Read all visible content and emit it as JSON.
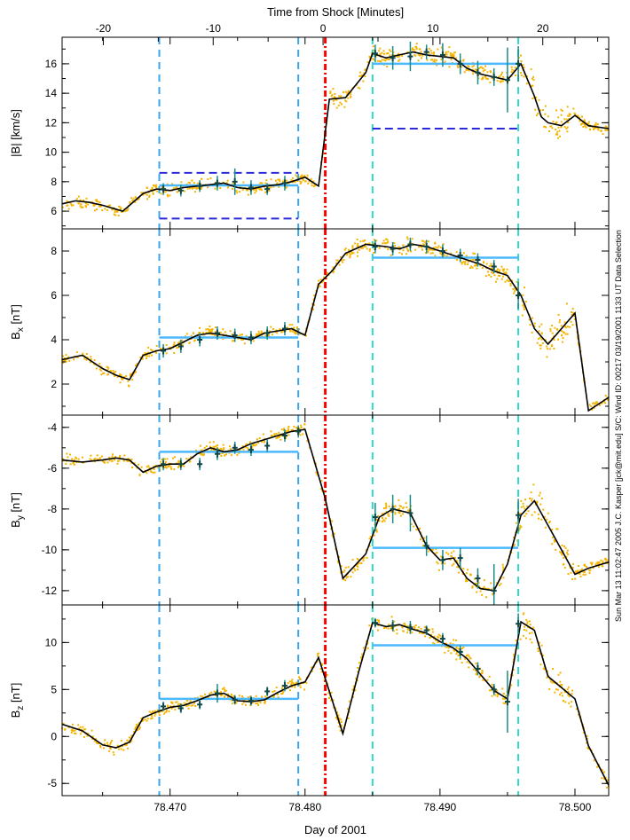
{
  "figure": {
    "top_axis_label": "Time from Shock [Minutes]",
    "bottom_axis_label": "Day of 2001",
    "side_note": "Sun Mar 13 11:02:47 2005  J.C. Kasper [jck@mit.edu]  S/C: Wind ID: 00217 03/19/2001  1133 UT Data Selection",
    "colors": {
      "data_points": "#f5b400",
      "model_line": "#000000",
      "fit_markers": "#1a8a8a",
      "region_bounds_up": "#3aa7ea",
      "region_bounds_down": "#30d8c8",
      "shock_line": "#ff0000",
      "mean_level": "#4cb9ff",
      "threshold": "#2a2ad8"
    }
  },
  "chart_data": [
    {
      "type": "line",
      "ylabel": "|B| [km/s]",
      "xlim": [
        78.462,
        78.5025
      ],
      "ylim": [
        4.8,
        17.8
      ],
      "yticks": [
        6,
        8,
        10,
        12,
        14,
        16
      ],
      "top_xlim": [
        -23.75,
        26.0
      ],
      "top_xticks": [
        -20,
        -10,
        0,
        10,
        20
      ],
      "shock_x": 78.4815,
      "upstream_window": [
        78.4692,
        78.4795
      ],
      "downstream_window": [
        78.485,
        78.4958
      ],
      "series": [
        {
          "role": "model",
          "x": [
            78.462,
            78.463,
            78.464,
            78.465,
            78.4665,
            78.468,
            78.469,
            78.47,
            78.471,
            78.472,
            78.473,
            78.474,
            78.475,
            78.476,
            78.477,
            78.478,
            78.479,
            78.48,
            78.481,
            78.4818,
            78.483,
            78.4845,
            78.485,
            78.486,
            78.487,
            78.488,
            78.489,
            78.49,
            78.491,
            78.492,
            78.493,
            78.494,
            78.495,
            78.496,
            78.497,
            78.4975,
            78.498,
            78.499,
            78.5,
            78.501,
            78.5025
          ],
          "y": [
            6.5,
            6.7,
            6.6,
            6.4,
            6.0,
            7.2,
            7.5,
            7.4,
            7.6,
            7.7,
            7.8,
            7.9,
            7.6,
            7.5,
            7.7,
            7.8,
            8.0,
            8.3,
            7.7,
            13.6,
            13.7,
            15.4,
            16.7,
            16.4,
            16.6,
            16.8,
            16.6,
            16.5,
            16.4,
            15.7,
            15.3,
            15.1,
            14.9,
            16.0,
            13.8,
            12.4,
            12.0,
            11.8,
            12.5,
            11.8,
            11.6
          ]
        },
        {
          "role": "fit_points",
          "x": [
            78.4695,
            78.4708,
            78.4722,
            78.4735,
            78.4748,
            78.476,
            78.4772,
            78.4785,
            78.4852,
            78.4865,
            78.4878,
            78.489,
            78.4902,
            78.4915,
            78.4928,
            78.494,
            78.495,
            78.4958
          ],
          "y": [
            7.5,
            7.4,
            7.7,
            7.9,
            8.0,
            7.6,
            7.5,
            7.9,
            16.7,
            16.4,
            16.5,
            16.8,
            16.6,
            16.0,
            15.4,
            15.1,
            14.9,
            16.0
          ],
          "err": [
            0.4,
            0.4,
            0.4,
            0.5,
            0.9,
            0.5,
            0.4,
            0.5,
            0.6,
            0.8,
            1.0,
            0.5,
            0.8,
            0.7,
            0.8,
            0.6,
            2.2,
            1.2
          ]
        },
        {
          "role": "mean_upstream",
          "x": [
            78.4692,
            78.4795
          ],
          "y": [
            7.75,
            7.75
          ]
        },
        {
          "role": "mean_downstream",
          "x": [
            78.485,
            78.4958
          ],
          "y": [
            16.0,
            16.0
          ]
        },
        {
          "role": "threshold_upper_up",
          "x": [
            78.4692,
            78.4795
          ],
          "y": [
            8.6,
            8.6
          ]
        },
        {
          "role": "threshold_lower_up",
          "x": [
            78.4692,
            78.4795
          ],
          "y": [
            5.5,
            5.5
          ]
        },
        {
          "role": "threshold_down",
          "x": [
            78.485,
            78.4958
          ],
          "y": [
            11.6,
            11.6
          ]
        }
      ]
    },
    {
      "type": "line",
      "ylabel": "B_x [nT]",
      "xlim": [
        78.462,
        78.5025
      ],
      "ylim": [
        0.6,
        9.0
      ],
      "yticks": [
        2,
        4,
        6,
        8
      ],
      "shock_x": 78.4815,
      "upstream_window": [
        78.4692,
        78.4795
      ],
      "downstream_window": [
        78.485,
        78.4958
      ],
      "series": [
        {
          "role": "model",
          "x": [
            78.462,
            78.4635,
            78.465,
            78.466,
            78.467,
            78.468,
            78.469,
            78.47,
            78.471,
            78.472,
            78.473,
            78.474,
            78.475,
            78.476,
            78.477,
            78.478,
            78.479,
            78.48,
            78.481,
            78.482,
            78.483,
            78.4845,
            78.486,
            78.487,
            78.488,
            78.489,
            78.49,
            78.491,
            78.492,
            78.493,
            78.494,
            78.495,
            78.496,
            78.497,
            78.498,
            78.5,
            78.501,
            78.5025
          ],
          "y": [
            3.1,
            3.3,
            2.7,
            2.4,
            2.2,
            3.3,
            3.5,
            3.6,
            3.9,
            4.2,
            4.3,
            4.2,
            4.1,
            4.0,
            4.3,
            4.4,
            4.5,
            4.2,
            6.5,
            7.1,
            7.9,
            8.3,
            8.2,
            8.1,
            8.3,
            8.2,
            8.0,
            7.8,
            7.6,
            7.4,
            7.1,
            6.9,
            6.0,
            4.5,
            3.8,
            5.2,
            0.8,
            1.4
          ]
        },
        {
          "role": "fit_points",
          "x": [
            78.4695,
            78.4708,
            78.4722,
            78.4735,
            78.4748,
            78.476,
            78.4772,
            78.4785,
            78.4852,
            78.4865,
            78.4878,
            78.489,
            78.4902,
            78.4915,
            78.4928,
            78.494,
            78.4958
          ],
          "y": [
            3.5,
            3.7,
            4.0,
            4.3,
            4.2,
            4.1,
            4.3,
            4.5,
            8.2,
            8.1,
            8.3,
            8.2,
            8.0,
            7.8,
            7.6,
            7.3,
            6.0
          ],
          "err": [
            0.3,
            0.3,
            0.3,
            0.3,
            0.3,
            0.3,
            0.3,
            0.3,
            0.3,
            0.3,
            0.3,
            0.3,
            0.3,
            0.3,
            0.3,
            0.3,
            0.6
          ]
        },
        {
          "role": "mean_upstream",
          "x": [
            78.4692,
            78.4795
          ],
          "y": [
            4.1,
            4.1
          ]
        },
        {
          "role": "mean_downstream",
          "x": [
            78.485,
            78.4958
          ],
          "y": [
            7.7,
            7.7
          ]
        }
      ]
    },
    {
      "type": "line",
      "ylabel": "B_y [nT]",
      "xlim": [
        78.462,
        78.5025
      ],
      "ylim": [
        -12.7,
        -3.4
      ],
      "yticks": [
        -12,
        -10,
        -8,
        -6,
        -4
      ],
      "shock_x": 78.4815,
      "upstream_window": [
        78.4692,
        78.4795
      ],
      "downstream_window": [
        78.485,
        78.4958
      ],
      "series": [
        {
          "role": "model",
          "x": [
            78.462,
            78.4635,
            78.465,
            78.466,
            78.467,
            78.468,
            78.469,
            78.47,
            78.471,
            78.472,
            78.473,
            78.474,
            78.475,
            78.476,
            78.477,
            78.478,
            78.479,
            78.48,
            78.4815,
            78.4828,
            78.4845,
            78.4855,
            78.4865,
            78.4878,
            78.489,
            78.49,
            78.491,
            78.492,
            78.493,
            78.494,
            78.495,
            78.496,
            78.497,
            78.498,
            78.5,
            78.501,
            78.5025
          ],
          "y": [
            -5.6,
            -5.7,
            -5.6,
            -5.5,
            -5.6,
            -6.2,
            -5.9,
            -5.8,
            -5.8,
            -5.3,
            -5.0,
            -5.2,
            -5.1,
            -4.8,
            -4.6,
            -4.4,
            -4.2,
            -4.1,
            -7.5,
            -11.4,
            -10.2,
            -8.4,
            -8.0,
            -8.2,
            -9.8,
            -10.5,
            -10.4,
            -11.4,
            -11.9,
            -12.0,
            -10.7,
            -8.3,
            -7.6,
            -8.8,
            -11.2,
            -10.9,
            -10.6
          ]
        },
        {
          "role": "fit_points",
          "x": [
            78.4695,
            78.4708,
            78.4722,
            78.4735,
            78.4748,
            78.476,
            78.4772,
            78.4785,
            78.4795,
            78.4852,
            78.4865,
            78.4878,
            78.489,
            78.4902,
            78.4915,
            78.4928,
            78.494,
            78.4958
          ],
          "y": [
            -5.8,
            -5.8,
            -5.8,
            -5.3,
            -5.0,
            -5.1,
            -4.9,
            -4.4,
            -4.2,
            -8.4,
            -8.0,
            -8.2,
            -9.8,
            -10.5,
            -10.4,
            -11.4,
            -12.0,
            -8.3
          ],
          "err": [
            0.3,
            0.3,
            0.3,
            0.3,
            0.3,
            0.3,
            0.3,
            0.3,
            0.3,
            0.7,
            0.7,
            0.9,
            0.5,
            0.5,
            0.5,
            0.5,
            1.3,
            0.8
          ]
        },
        {
          "role": "mean_upstream",
          "x": [
            78.4692,
            78.4795
          ],
          "y": [
            -5.2,
            -5.2
          ]
        },
        {
          "role": "mean_downstream",
          "x": [
            78.485,
            78.4958
          ],
          "y": [
            -9.9,
            -9.9
          ]
        }
      ]
    },
    {
      "type": "line",
      "ylabel": "B_z [nT]",
      "xlim": [
        78.462,
        78.5025
      ],
      "ylim": [
        -6.3,
        14.0
      ],
      "yticks": [
        -5,
        0,
        5,
        10
      ],
      "bottom_xticks": [
        78.47,
        78.48,
        78.49,
        78.5
      ],
      "bottom_xtick_labels": [
        "78.470",
        "78.480",
        "78.490",
        "78.500"
      ],
      "shock_x": 78.4815,
      "upstream_window": [
        78.4692,
        78.4795
      ],
      "downstream_window": [
        78.485,
        78.4958
      ],
      "series": [
        {
          "role": "model",
          "x": [
            78.462,
            78.4635,
            78.465,
            78.466,
            78.467,
            78.468,
            78.469,
            78.47,
            78.471,
            78.472,
            78.473,
            78.474,
            78.475,
            78.476,
            78.477,
            78.478,
            78.479,
            78.48,
            78.481,
            78.4828,
            78.484,
            78.485,
            78.486,
            78.487,
            78.488,
            78.489,
            78.49,
            78.491,
            78.492,
            78.493,
            78.494,
            78.495,
            78.496,
            78.497,
            78.498,
            78.5,
            78.501,
            78.5025
          ],
          "y": [
            1.3,
            0.6,
            -0.9,
            -1.2,
            -0.6,
            2.0,
            2.6,
            3.1,
            3.3,
            3.8,
            4.4,
            4.6,
            3.8,
            3.7,
            3.9,
            4.7,
            5.4,
            5.8,
            8.4,
            0.3,
            7.0,
            12.1,
            11.7,
            11.9,
            11.4,
            11.0,
            10.1,
            9.4,
            8.3,
            6.6,
            4.9,
            4.0,
            12.2,
            11.3,
            6.4,
            4.0,
            -1.0,
            -5.2
          ]
        },
        {
          "role": "fit_points",
          "x": [
            78.4695,
            78.4708,
            78.4722,
            78.4735,
            78.4748,
            78.476,
            78.4772,
            78.4785,
            78.4852,
            78.4865,
            78.4878,
            78.489,
            78.4902,
            78.4915,
            78.4928,
            78.494,
            78.495,
            78.4958
          ],
          "y": [
            3.2,
            3.0,
            3.4,
            4.6,
            3.9,
            3.8,
            4.8,
            5.4,
            12.1,
            11.8,
            11.6,
            11.3,
            10.4,
            9.0,
            7.2,
            5.0,
            3.7,
            12.0
          ],
          "err": [
            0.5,
            0.5,
            0.5,
            1.0,
            0.5,
            0.5,
            0.5,
            0.6,
            0.5,
            0.6,
            0.7,
            0.5,
            0.6,
            0.7,
            0.7,
            0.6,
            3.3,
            1.1
          ]
        },
        {
          "role": "mean_upstream",
          "x": [
            78.4692,
            78.4795
          ],
          "y": [
            4.0,
            4.0
          ]
        },
        {
          "role": "mean_downstream",
          "x": [
            78.485,
            78.4958
          ],
          "y": [
            9.7,
            9.7
          ]
        }
      ]
    }
  ]
}
